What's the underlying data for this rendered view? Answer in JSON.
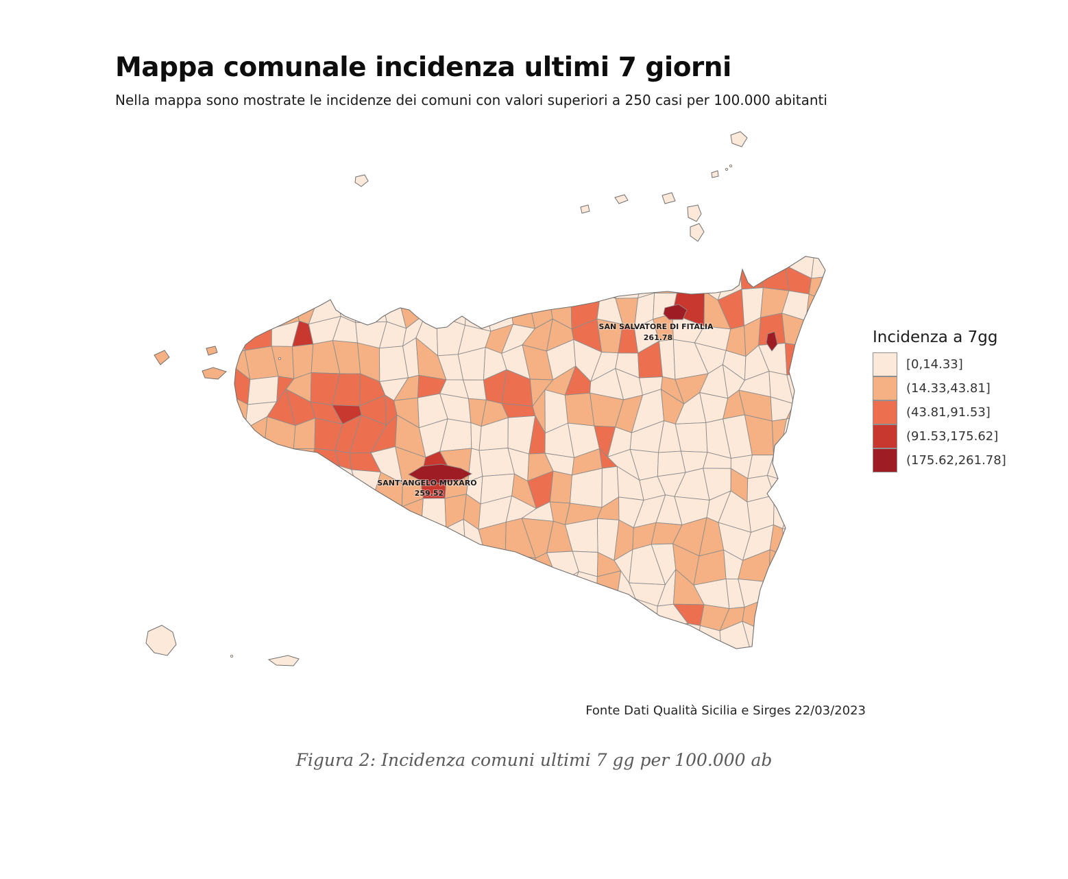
{
  "title": "Mappa comunale incidenza ultimi 7 giorni",
  "subtitle": "Nella mappa sono mostrate le incidenze dei comuni con valori superiori a 250 casi per 100.000 abitanti",
  "legend": {
    "title": "Incidenza a 7gg",
    "bins": [
      {
        "label": "[0,14.33]",
        "color": "#fde9da"
      },
      {
        "label": "(14.33,43.81]",
        "color": "#f5b183"
      },
      {
        "label": "(43.81,91.53]",
        "color": "#ec7050"
      },
      {
        "label": "(91.53,175.62]",
        "color": "#c8382f"
      },
      {
        "label": "(175.62,261.78]",
        "color": "#9e1c23"
      }
    ]
  },
  "map": {
    "border_color": "#8c8c8c",
    "coast_color": "#6f6f6f",
    "annotations": [
      {
        "name": "SAN SALVATORE DI FITALIA",
        "value": "261.78"
      },
      {
        "name": "SANT'ANGELO MUXARO",
        "value": "259.52"
      }
    ]
  },
  "source": "Fonte Dati Qualità Sicilia e Sirges 22/03/2023",
  "caption": "Figura 2: Incidenza comuni ultimi 7 gg per 100.000 ab",
  "chart_data": {
    "type": "choropleth_map",
    "title": "Mappa comunale incidenza ultimi 7 giorni",
    "region": "Sicilia (comuni)",
    "metric": "Incidenza a 7 giorni, casi per 100.000 abitanti",
    "legend_position": "right",
    "bins": [
      {
        "range": "[0,14.33]",
        "color": "#fde9da"
      },
      {
        "range": "(14.33,43.81]",
        "color": "#f5b183"
      },
      {
        "range": "(43.81,91.53]",
        "color": "#ec7050"
      },
      {
        "range": "(91.53,175.62]",
        "color": "#c8382f"
      },
      {
        "range": "(175.62,261.78]",
        "color": "#9e1c23"
      }
    ],
    "scale_domain": [
      0,
      261.78
    ],
    "labeled_municipalities": [
      {
        "name": "SAN SALVATORE DI FITALIA",
        "value": 261.78
      },
      {
        "name": "SANT'ANGELO MUXARO",
        "value": 259.52
      }
    ],
    "source": "Fonte Dati Qualità Sicilia e Sirges 22/03/2023"
  }
}
